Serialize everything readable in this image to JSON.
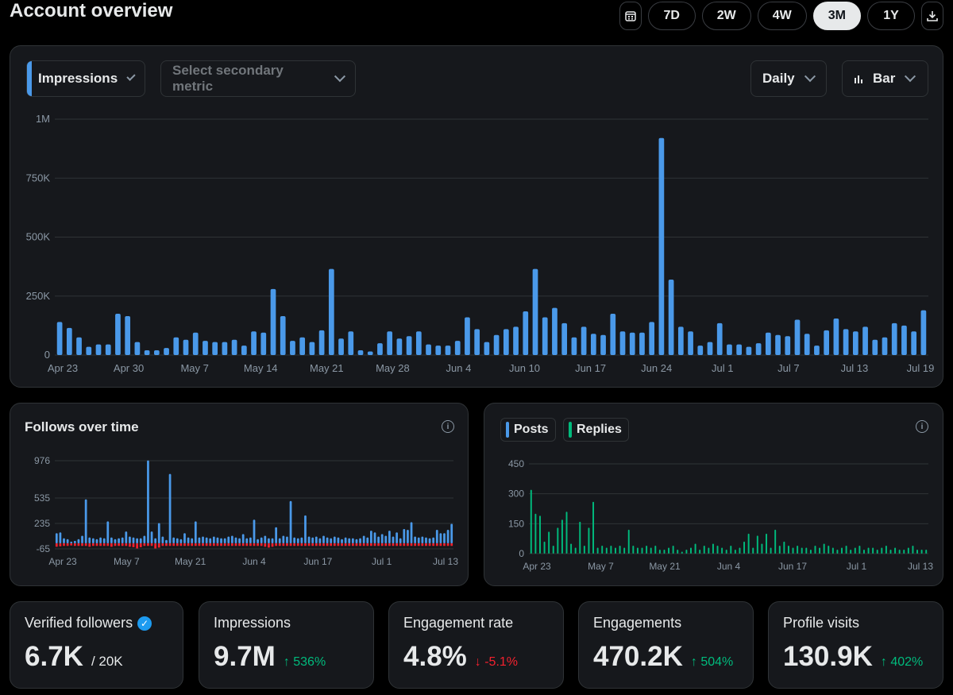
{
  "header": {
    "title": "Account overview"
  },
  "range": {
    "buttons": [
      "7D",
      "2W",
      "4W",
      "3M",
      "1Y"
    ],
    "active": "3M"
  },
  "main_chart": {
    "primary_metric": "Impressions",
    "secondary_placeholder": "Select secondary metric",
    "granularity": "Daily",
    "chart_type_label": "Bar"
  },
  "follows_card": {
    "title": "Follows over time"
  },
  "posts_card": {
    "legend": [
      "Posts",
      "Replies"
    ]
  },
  "colors": {
    "blue": "#4a99e9",
    "green": "#00ba7c",
    "red": "#f4212e"
  },
  "stats": [
    {
      "label": "Verified followers",
      "value": "6.7K",
      "sub": "/ 20K",
      "verified": true
    },
    {
      "label": "Impressions",
      "value": "9.7M",
      "change": "↑ 536%",
      "dir": "up"
    },
    {
      "label": "Engagement rate",
      "value": "4.8%",
      "change": "↓ -5.1%",
      "dir": "down"
    },
    {
      "label": "Engagements",
      "value": "470.2K",
      "change": "↑ 504%",
      "dir": "up"
    },
    {
      "label": "Profile visits",
      "value": "130.9K",
      "change": "↑ 402%",
      "dir": "up"
    }
  ],
  "chart_data": [
    {
      "type": "bar",
      "name": "impressions",
      "ylim": [
        0,
        1000000
      ],
      "yticks": [
        "0",
        "250K",
        "500K",
        "750K",
        "1M"
      ],
      "xticks": [
        "Apr 23",
        "Apr 30",
        "May 7",
        "May 14",
        "May 21",
        "May 28",
        "Jun 4",
        "Jun 10",
        "Jun 17",
        "Jun 24",
        "Jul 1",
        "Jul 7",
        "Jul 13",
        "Jul 19"
      ],
      "values": [
        140000,
        115000,
        75000,
        35000,
        45000,
        45000,
        175000,
        165000,
        55000,
        20000,
        20000,
        30000,
        75000,
        65000,
        95000,
        60000,
        55000,
        55000,
        65000,
        40000,
        100000,
        95000,
        280000,
        165000,
        60000,
        75000,
        55000,
        105000,
        365000,
        70000,
        100000,
        20000,
        15000,
        50000,
        100000,
        70000,
        80000,
        100000,
        45000,
        40000,
        40000,
        60000,
        160000,
        110000,
        55000,
        85000,
        110000,
        120000,
        185000,
        365000,
        160000,
        200000,
        135000,
        75000,
        120000,
        90000,
        85000,
        175000,
        100000,
        95000,
        95000,
        140000,
        920000,
        320000,
        120000,
        100000,
        40000,
        55000,
        135000,
        45000,
        45000,
        35000,
        50000,
        95000,
        85000,
        80000,
        150000,
        90000,
        40000,
        105000,
        155000,
        110000,
        100000,
        120000,
        65000,
        75000,
        135000,
        125000,
        100000,
        190000
      ]
    },
    {
      "type": "bar",
      "name": "follows",
      "ylim": [
        -65,
        976
      ],
      "yticks": [
        "-65",
        "235",
        "535",
        "976"
      ],
      "xticks": [
        "Apr 23",
        "May 7",
        "May 21",
        "Jun 4",
        "Jun 17",
        "Jul 1",
        "Jul 13"
      ],
      "values": [
        120,
        130,
        60,
        50,
        20,
        30,
        50,
        90,
        520,
        70,
        60,
        50,
        70,
        60,
        260,
        70,
        50,
        60,
        70,
        140,
        80,
        70,
        60,
        60,
        90,
        980,
        140,
        60,
        240,
        80,
        40,
        820,
        70,
        60,
        50,
        120,
        70,
        60,
        260,
        70,
        80,
        70,
        60,
        80,
        70,
        60,
        60,
        80,
        90,
        70,
        60,
        110,
        60,
        70,
        280,
        50,
        70,
        90,
        60,
        60,
        190,
        60,
        90,
        80,
        500,
        70,
        60,
        70,
        330,
        80,
        70,
        80,
        60,
        90,
        70,
        60,
        80,
        70,
        50,
        70,
        60,
        60,
        50,
        60,
        90,
        70,
        150,
        130,
        80,
        110,
        90,
        150,
        80,
        130,
        60,
        170,
        160,
        250,
        80,
        70,
        80,
        70,
        60,
        70,
        160,
        120,
        120,
        160,
        230
      ],
      "negative": [
        -40,
        -35,
        -30,
        -30,
        -25,
        -30,
        -30,
        -30,
        -30,
        -40,
        -30,
        -30,
        -30,
        -30,
        -30,
        -40,
        -30,
        -30,
        -30,
        -30,
        -40,
        -45,
        -60,
        -45,
        -30,
        -30,
        -30,
        -60,
        -50,
        -30,
        -30,
        -30,
        -30,
        -30,
        -30,
        -30,
        -30,
        -30,
        -30,
        -30,
        -30,
        -30,
        -30,
        -30,
        -30,
        -30,
        -30,
        -30,
        -30,
        -30,
        -30,
        -30,
        -30,
        -30,
        -30,
        -30,
        -30,
        -40,
        -50,
        -40,
        -30,
        -30,
        -30,
        -30,
        -30,
        -30,
        -30,
        -30,
        -30,
        -30,
        -30,
        -30,
        -30,
        -30,
        -30,
        -30,
        -30,
        -30,
        -30,
        -30,
        -30,
        -30,
        -30,
        -30,
        -30,
        -30,
        -30,
        -30,
        -30,
        -30,
        -30,
        -30,
        -30,
        -30,
        -30,
        -30,
        -30,
        -30,
        -30,
        -30,
        -30,
        -30,
        -30,
        -30,
        -30,
        -30,
        -30,
        -30,
        -30
      ]
    },
    {
      "type": "bar",
      "name": "posts-replies",
      "ylim": [
        0,
        450
      ],
      "yticks": [
        "0",
        "150",
        "300",
        "450"
      ],
      "xticks": [
        "Apr 23",
        "May 7",
        "May 21",
        "Jun 4",
        "Jun 17",
        "Jul 1",
        "Jul 13"
      ],
      "series": [
        {
          "name": "Posts",
          "values": [
            0,
            0,
            0,
            0,
            0,
            0,
            0,
            0,
            0,
            0,
            0,
            0,
            0,
            0,
            0,
            0,
            0,
            0,
            0,
            0,
            0,
            0,
            0,
            0,
            0,
            0,
            0,
            0,
            0,
            0,
            0,
            0,
            0,
            0,
            0,
            0,
            0,
            0,
            0,
            0,
            0,
            0,
            0,
            0,
            0,
            0,
            0,
            0,
            0,
            0,
            0,
            0,
            0,
            0,
            0,
            0,
            0,
            0,
            0,
            0,
            0,
            0,
            0,
            0,
            0,
            0,
            0,
            0,
            0,
            0,
            0,
            0,
            0,
            0,
            0,
            0,
            0,
            0,
            0,
            0,
            0,
            0,
            0,
            0,
            0,
            0,
            0,
            0,
            0,
            0
          ]
        },
        {
          "name": "Replies",
          "values": [
            320,
            200,
            190,
            60,
            110,
            40,
            130,
            170,
            210,
            50,
            30,
            160,
            40,
            130,
            260,
            30,
            40,
            30,
            40,
            30,
            40,
            30,
            120,
            40,
            30,
            30,
            40,
            30,
            40,
            20,
            20,
            30,
            40,
            20,
            10,
            20,
            30,
            50,
            20,
            40,
            30,
            50,
            40,
            30,
            20,
            40,
            20,
            30,
            60,
            100,
            30,
            90,
            50,
            100,
            30,
            120,
            40,
            60,
            40,
            30,
            40,
            30,
            30,
            20,
            40,
            30,
            50,
            40,
            30,
            20,
            30,
            40,
            20,
            30,
            40,
            20,
            30,
            30,
            20,
            30,
            40,
            20,
            30,
            20,
            20,
            30,
            40,
            20,
            20,
            20
          ]
        }
      ]
    }
  ]
}
